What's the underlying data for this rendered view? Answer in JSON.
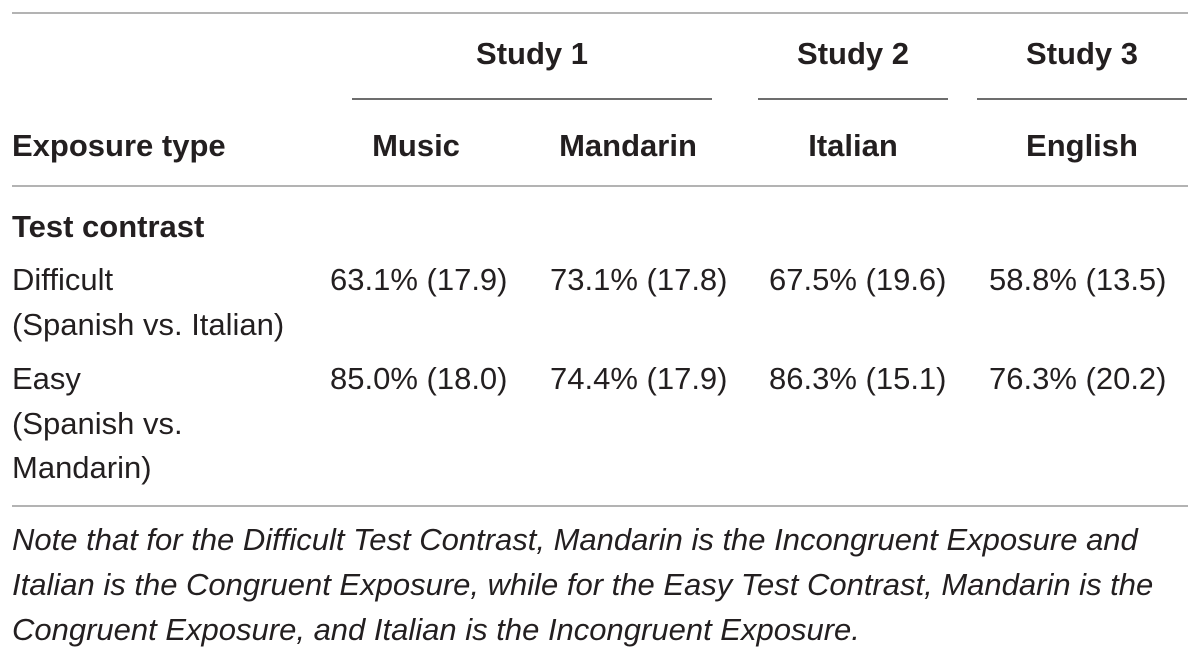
{
  "table": {
    "study_headers": [
      {
        "label": "Study 1"
      },
      {
        "label": "Study 2"
      },
      {
        "label": "Study 3"
      }
    ],
    "row_header_label": "Exposure type",
    "columns": [
      {
        "label": "Music"
      },
      {
        "label": "Mandarin"
      },
      {
        "label": "Italian"
      },
      {
        "label": "English"
      }
    ],
    "section_label": "Test contrast",
    "rows": [
      {
        "label_lines": [
          "Difficult",
          "(Spanish vs. Italian)"
        ],
        "values": [
          "63.1% (17.9)",
          "73.1% (17.8)",
          "67.5% (19.6)",
          "58.8% (13.5)"
        ]
      },
      {
        "label_lines": [
          "Easy",
          "(Spanish vs.",
          "Mandarin)"
        ],
        "values": [
          "85.0% (18.0)",
          "74.4% (17.9)",
          "86.3% (15.1)",
          "76.3% (20.2)"
        ]
      }
    ],
    "note": "Note that for the Difficult Test Contrast, Mandarin is the Incongruent Exposure and Italian is the Congruent Exposure, while for the Easy Test Contrast, Mandarin is the Congruent Exposure, and Italian is the Incongruent Exposure."
  }
}
